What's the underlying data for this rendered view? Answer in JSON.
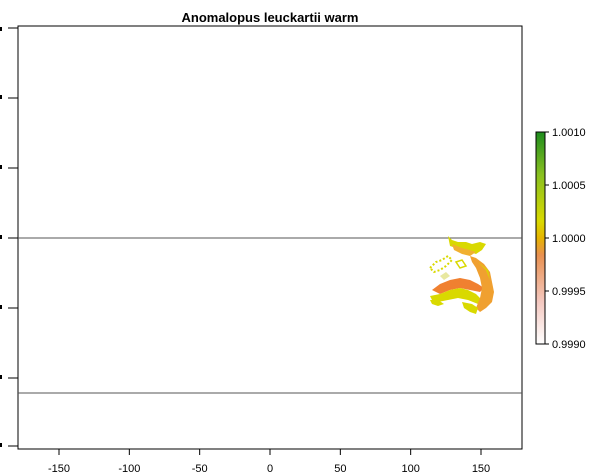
{
  "title": "Anomalopus leuckartii warm",
  "x_ticks": [
    "-150",
    "-100",
    "-50",
    "0",
    "50",
    "100",
    "150"
  ],
  "x_tick_values": [
    -150,
    -100,
    -50,
    0,
    50,
    100,
    150
  ],
  "legend": {
    "labels": [
      "1.0010",
      "1.0005",
      "1.0000",
      "0.9995",
      "0.9990"
    ],
    "values": [
      1.001,
      1.0005,
      1.0,
      0.9995,
      0.999
    ]
  },
  "colors": {
    "high": "#1e8c1e",
    "mid": "#d9d900",
    "orange": "#f0a030",
    "dark_orange": "#f08030",
    "low": "#ffffff"
  }
}
